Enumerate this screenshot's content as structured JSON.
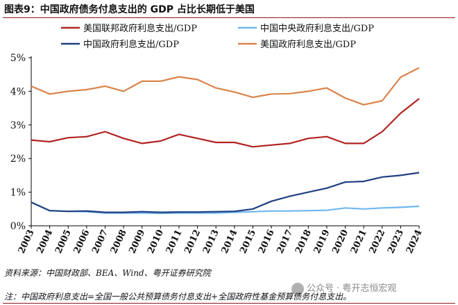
{
  "figure": {
    "title": "图表9：中国政府债务付息支出的 GDP 占比长期低于美国",
    "source": "资料来源：中国财政部、BEA、Wind、粤开证券研究院",
    "note": "注：中国政府利息支出=全国一般公共预算债务付息支出+全国政府性基金预算债务付息支出。",
    "watermark": "公众号 · 粤开志恒宏观"
  },
  "chart_data": {
    "type": "line",
    "x": [
      2003,
      2004,
      2005,
      2006,
      2007,
      2008,
      2009,
      2010,
      2011,
      2012,
      2013,
      2014,
      2015,
      2016,
      2017,
      2018,
      2019,
      2020,
      2021,
      2022,
      2023,
      2024
    ],
    "x_tick_labels": [
      "2003",
      "2004",
      "2005",
      "2006",
      "2007",
      "2008",
      "2009",
      "2010",
      "2011",
      "2012",
      "2013",
      "2014",
      "2015",
      "2016",
      "2017",
      "2018",
      "2019",
      "2020",
      "2021",
      "2022",
      "2023",
      "2024"
    ],
    "ylim": [
      0,
      5
    ],
    "y_ticks": [
      0,
      1,
      2,
      3,
      4,
      5
    ],
    "y_tick_labels": [
      "0%",
      "1%",
      "2%",
      "3%",
      "4%",
      "5%"
    ],
    "legend_position": "top",
    "series": [
      {
        "name": "美国联邦政府利息支出/GDP",
        "color": "#b22222",
        "values": [
          2.55,
          2.5,
          2.62,
          2.65,
          2.8,
          2.6,
          2.45,
          2.52,
          2.72,
          2.6,
          2.48,
          2.48,
          2.35,
          2.4,
          2.45,
          2.6,
          2.65,
          2.45,
          2.45,
          2.8,
          3.35,
          3.78
        ]
      },
      {
        "name": "中国中央政府利息支出/GDP",
        "color": "#6fb7ee",
        "values": [
          0.7,
          0.45,
          0.43,
          0.42,
          0.38,
          0.38,
          0.38,
          0.37,
          0.38,
          0.38,
          0.38,
          0.4,
          0.42,
          0.44,
          0.44,
          0.45,
          0.46,
          0.53,
          0.5,
          0.53,
          0.55,
          0.58
        ]
      },
      {
        "name": "中国政府利息支出/GDP",
        "color": "#1f3f7f",
        "values": [
          0.7,
          0.45,
          0.43,
          0.44,
          0.4,
          0.4,
          0.42,
          0.4,
          0.41,
          0.41,
          0.42,
          0.43,
          0.5,
          0.73,
          0.88,
          1.0,
          1.12,
          1.3,
          1.32,
          1.45,
          1.5,
          1.58
        ]
      },
      {
        "name": "美国政府利息支出/GDP",
        "color": "#d9844a",
        "values": [
          4.15,
          3.92,
          4.0,
          4.05,
          4.15,
          4.0,
          4.3,
          4.3,
          4.43,
          4.35,
          4.1,
          3.98,
          3.82,
          3.92,
          3.93,
          4.0,
          4.1,
          3.8,
          3.6,
          3.72,
          4.42,
          4.7
        ]
      }
    ]
  }
}
